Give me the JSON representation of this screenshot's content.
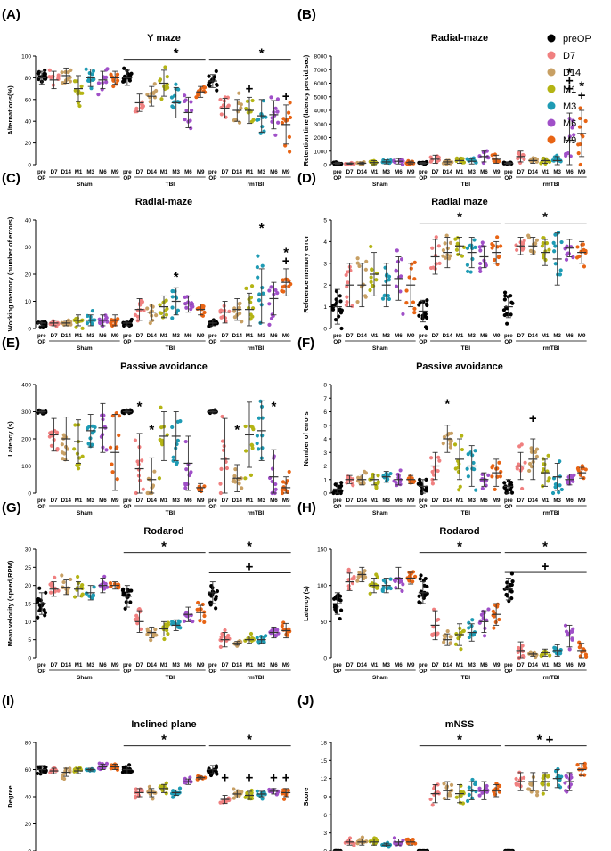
{
  "legend": {
    "entries": [
      {
        "label": "preOP",
        "color": "#000000"
      },
      {
        "label": "D7",
        "color": "#f08080"
      },
      {
        "label": "D14",
        "color": "#c8a064"
      },
      {
        "label": "M1",
        "color": "#b4b414"
      },
      {
        "label": "M3",
        "color": "#1e9bb4"
      },
      {
        "label": "M6",
        "color": "#a050c8"
      },
      {
        "label": "M9",
        "color": "#e86414"
      }
    ]
  },
  "groups": {
    "sham_label": "Sham",
    "tbi_label": "TBI",
    "rmtbi_label": "rmTBI",
    "ticks": [
      "pre OP",
      "D7",
      "D14",
      "M1",
      "M3",
      "M6",
      "M9"
    ]
  },
  "chart_data": [
    {
      "id": "A",
      "panel_label": "(A)",
      "type": "scatter",
      "title": "Y maze",
      "ylabel": "Alternations(%)",
      "ylim": [
        0,
        100
      ],
      "yticks": [
        "0",
        "20",
        "40",
        "60",
        "80",
        "100"
      ],
      "means": [
        [
          80,
          78,
          82,
          70,
          80,
          78,
          80
        ],
        [
          80,
          57,
          63,
          75,
          57,
          48,
          67
        ],
        [
          77,
          52,
          50,
          50,
          45,
          46,
          37
        ]
      ],
      "sds": [
        [
          6,
          8,
          7,
          12,
          8,
          8,
          6
        ],
        [
          7,
          8,
          9,
          12,
          14,
          14,
          5
        ],
        [
          6,
          9,
          10,
          12,
          15,
          13,
          18
        ]
      ],
      "annotations": [
        {
          "group": "TBI",
          "col": 4,
          "symbol": "*",
          "bar": true
        },
        {
          "group": "rmTBI",
          "col": 4,
          "symbol": "*",
          "bar": true
        },
        {
          "group": "rmTBI",
          "col": 3,
          "symbol": "+"
        },
        {
          "group": "rmTBI",
          "col": 6,
          "symbol": "+"
        }
      ]
    },
    {
      "id": "B",
      "panel_label": "(B)",
      "type": "scatter",
      "title": "Radial-maze",
      "ylabel": "Retention time (latency peroid,sec)",
      "ylim": [
        0,
        8000
      ],
      "yticks": [
        "0",
        "1000",
        "2000",
        "3000",
        "4000",
        "5000",
        "6000",
        "7000",
        "8000"
      ],
      "means": [
        [
          100,
          80,
          100,
          150,
          200,
          250,
          150
        ],
        [
          100,
          400,
          200,
          300,
          250,
          600,
          400
        ],
        [
          100,
          600,
          300,
          300,
          300,
          1800,
          2300
        ]
      ],
      "sds": [
        [
          80,
          50,
          80,
          150,
          150,
          200,
          100
        ],
        [
          60,
          300,
          150,
          200,
          200,
          400,
          300
        ],
        [
          60,
          400,
          200,
          200,
          300,
          2000,
          1700
        ]
      ],
      "annotations": [
        {
          "group": "rmTBI",
          "col": 5,
          "symbol": "*",
          "y": 6800
        },
        {
          "group": "rmTBI",
          "col": 5,
          "symbol": "+",
          "y": 6200
        },
        {
          "group": "rmTBI",
          "col": 5,
          "symbol": "+",
          "y": 5600
        },
        {
          "group": "rmTBI",
          "col": 6,
          "symbol": "*",
          "y": 5800
        },
        {
          "group": "rmTBI",
          "col": 6,
          "symbol": "+",
          "y": 5100
        }
      ]
    },
    {
      "id": "C",
      "panel_label": "(C)",
      "type": "scatter",
      "title": "Radial-maze",
      "ylabel": "Working memory (number of errors)",
      "ylim": [
        0,
        40
      ],
      "yticks": [
        "0",
        "10",
        "20",
        "30",
        "40"
      ],
      "means": [
        [
          2,
          2,
          2,
          3,
          3,
          3,
          3
        ],
        [
          2,
          7,
          6,
          8,
          10,
          9,
          7
        ],
        [
          2,
          6,
          7,
          7,
          12,
          11,
          17
        ]
      ],
      "sds": [
        [
          1,
          1,
          1,
          2,
          2,
          2,
          2
        ],
        [
          1,
          4,
          3,
          4,
          5,
          3,
          2
        ],
        [
          1,
          4,
          4,
          6,
          10,
          6,
          5
        ]
      ],
      "annotations": [
        {
          "group": "TBI",
          "col": 4,
          "symbol": "*",
          "y": 19
        },
        {
          "group": "rmTBI",
          "col": 4,
          "symbol": "*",
          "y": 37
        },
        {
          "group": "rmTBI",
          "col": 6,
          "symbol": "*",
          "y": 28
        },
        {
          "group": "rmTBI",
          "col": 6,
          "symbol": "+",
          "y": 25
        }
      ]
    },
    {
      "id": "D",
      "panel_label": "(D)",
      "type": "scatter",
      "title": "Radial maze",
      "ylabel": "Reference memory error",
      "ylim": [
        0,
        5
      ],
      "yticks": [
        "0",
        "1",
        "2",
        "3",
        "4",
        "5"
      ],
      "means": [
        [
          1,
          2,
          2,
          2.5,
          2,
          2.3,
          2
        ],
        [
          0.8,
          3.3,
          3.5,
          3.8,
          3.5,
          3.3,
          3.5
        ],
        [
          1,
          3.8,
          3.8,
          3.5,
          3.2,
          3.7,
          3.5
        ]
      ],
      "sds": [
        [
          0.8,
          1,
          1,
          1,
          1,
          1,
          1
        ],
        [
          0.5,
          0.8,
          0.7,
          0.4,
          0.7,
          0.5,
          0.5
        ],
        [
          0.5,
          0.4,
          0.4,
          0.6,
          1.2,
          0.4,
          0.5
        ]
      ],
      "annotations": [
        {
          "group": "TBI",
          "col": 3,
          "symbol": "*",
          "bar": true
        },
        {
          "group": "rmTBI",
          "col": 3,
          "symbol": "*",
          "bar": true
        }
      ]
    },
    {
      "id": "E",
      "panel_label": "(E)",
      "type": "scatter",
      "title": "Passive avoidance",
      "ylabel": "Latency (s)",
      "ylim": [
        0,
        400
      ],
      "yticks": [
        "0",
        "100",
        "200",
        "300",
        "400"
      ],
      "means": [
        [
          300,
          215,
          200,
          190,
          230,
          240,
          150
        ],
        [
          300,
          90,
          50,
          210,
          210,
          110,
          20
        ],
        [
          300,
          125,
          55,
          215,
          230,
          60,
          20
        ]
      ],
      "sds": [
        [
          5,
          60,
          80,
          80,
          60,
          90,
          140
        ],
        [
          5,
          130,
          80,
          90,
          90,
          100,
          15
        ],
        [
          5,
          150,
          50,
          120,
          110,
          100,
          40
        ]
      ],
      "annotations": [
        {
          "group": "TBI",
          "col": 1,
          "symbol": "*",
          "y": 320
        },
        {
          "group": "TBI",
          "col": 2,
          "symbol": "*",
          "y": 235
        },
        {
          "group": "rmTBI",
          "col": 2,
          "symbol": "*",
          "y": 235
        },
        {
          "group": "rmTBI",
          "col": 5,
          "symbol": "*",
          "y": 320
        }
      ]
    },
    {
      "id": "F",
      "panel_label": "(F)",
      "type": "scatter",
      "title": "Passive avoidance",
      "ylabel": "Number of errors",
      "ylim": [
        0,
        8
      ],
      "yticks": [
        "0",
        "1",
        "2",
        "3",
        "4",
        "5",
        "6",
        "7",
        "8"
      ],
      "means": [
        [
          0.3,
          1,
          1,
          1,
          1.2,
          1,
          1
        ],
        [
          0.5,
          2,
          4,
          2.5,
          2,
          1,
          1.5
        ],
        [
          0.5,
          2,
          2.5,
          1.5,
          1.2,
          1,
          1.5
        ]
      ],
      "sds": [
        [
          0.5,
          0.3,
          0.4,
          0.4,
          0.4,
          0.4,
          0.3
        ],
        [
          0.5,
          1,
          1,
          1.5,
          1.5,
          0.5,
          1
        ],
        [
          0.5,
          1,
          1.5,
          1,
          1,
          0.4,
          0.4
        ]
      ],
      "annotations": [
        {
          "group": "TBI",
          "col": 2,
          "symbol": "*",
          "y": 6.6
        },
        {
          "group": "rmTBI",
          "col": 2,
          "symbol": "+",
          "y": 5.5
        }
      ]
    },
    {
      "id": "G",
      "panel_label": "(G)",
      "type": "scatter",
      "title": "Rodarod",
      "ylabel": "Mean velocity (speed,RPM)",
      "ylim": [
        0,
        30
      ],
      "yticks": [
        "0",
        "5",
        "10",
        "15",
        "20",
        "25",
        "30"
      ],
      "means": [
        [
          15,
          19,
          19.5,
          19,
          18,
          20,
          20
        ],
        [
          17,
          10,
          7,
          8,
          9,
          12,
          12.5
        ],
        [
          18,
          5,
          4,
          5,
          5,
          7,
          7.5
        ]
      ],
      "sds": [
        [
          3,
          2,
          2,
          2,
          2,
          2,
          1
        ],
        [
          3,
          3,
          1.5,
          2,
          1.5,
          2,
          2
        ],
        [
          3,
          2,
          0.5,
          1,
          1,
          1.5,
          2
        ]
      ],
      "annotations": [
        {
          "group": "TBI",
          "col": 3,
          "symbol": "*",
          "bar": true
        },
        {
          "group": "rmTBI",
          "col": 3,
          "symbol": "*",
          "bar": true
        },
        {
          "group": "rmTBI",
          "col": 3,
          "symbol": "+",
          "bar": true,
          "y": 23.5
        }
      ]
    },
    {
      "id": "H",
      "panel_label": "(H)",
      "type": "scatter",
      "title": "Rodarod",
      "ylabel": "Latency (s)",
      "ylim": [
        0,
        150
      ],
      "yticks": [
        "0",
        "50",
        "100",
        "150"
      ],
      "means": [
        [
          75,
          105,
          115,
          100,
          100,
          110,
          110
        ],
        [
          90,
          45,
          25,
          32,
          35,
          50,
          60
        ],
        [
          95,
          10,
          5,
          7,
          10,
          30,
          10
        ]
      ],
      "sds": [
        [
          15,
          12,
          10,
          10,
          10,
          15,
          8
        ],
        [
          15,
          20,
          8,
          15,
          12,
          15,
          15
        ],
        [
          15,
          12,
          3,
          5,
          8,
          15,
          10
        ]
      ],
      "annotations": [
        {
          "group": "TBI",
          "col": 3,
          "symbol": "*",
          "bar": true
        },
        {
          "group": "rmTBI",
          "col": 3,
          "symbol": "*",
          "bar": true
        },
        {
          "group": "rmTBI",
          "col": 3,
          "symbol": "+",
          "bar": true,
          "y": 118
        }
      ]
    },
    {
      "id": "I",
      "panel_label": "(I)",
      "type": "scatter",
      "title": "Inclined plane",
      "ylabel": "Degree",
      "ylim": [
        0,
        80
      ],
      "yticks": [
        "0",
        "20",
        "40",
        "60",
        "80"
      ],
      "means": [
        [
          60,
          59,
          58,
          59,
          60,
          62,
          62
        ],
        [
          60,
          43,
          43,
          46,
          43,
          51,
          54
        ],
        [
          60,
          38,
          42,
          41,
          42,
          44,
          43
        ]
      ],
      "sds": [
        [
          3,
          2,
          3,
          2,
          1,
          2,
          2
        ],
        [
          3,
          3,
          3,
          3,
          2,
          2,
          1
        ],
        [
          3,
          3,
          3,
          3,
          2,
          2,
          3
        ]
      ],
      "annotations": [
        {
          "group": "TBI",
          "col": 3,
          "symbol": "*",
          "bar": true
        },
        {
          "group": "rmTBI",
          "col": 3,
          "symbol": "*",
          "bar": true
        },
        {
          "group": "rmTBI",
          "col": 1,
          "symbol": "+",
          "y": 54
        },
        {
          "group": "rmTBI",
          "col": 3,
          "symbol": "+",
          "y": 54
        },
        {
          "group": "rmTBI",
          "col": 5,
          "symbol": "+",
          "y": 54
        },
        {
          "group": "rmTBI",
          "col": 6,
          "symbol": "+",
          "y": 54
        }
      ]
    },
    {
      "id": "J",
      "panel_label": "(J)",
      "type": "scatter",
      "title": "mNSS",
      "ylabel": "Score",
      "ylim": [
        0,
        18
      ],
      "yticks": [
        "0",
        "3",
        "6",
        "9",
        "12",
        "15",
        "18"
      ],
      "means": [
        [
          0,
          1.5,
          1.5,
          1.5,
          1,
          1.5,
          1.5
        ],
        [
          0,
          9.5,
          10,
          9.5,
          10,
          10,
          10
        ],
        [
          0,
          11.5,
          11.5,
          11.5,
          12,
          11.5,
          13.5
        ]
      ],
      "sds": [
        [
          0,
          0.5,
          0.5,
          0.5,
          0.3,
          0.5,
          0.5
        ],
        [
          0,
          1.5,
          1.5,
          1.5,
          1.5,
          1.5,
          1
        ],
        [
          0,
          1.5,
          1.5,
          1.5,
          1.5,
          1.5,
          1
        ]
      ],
      "annotations": [
        {
          "group": "TBI",
          "col": 3,
          "symbol": "*",
          "bar": true
        },
        {
          "group": "rmTBI",
          "col": 3,
          "symbol": "* +",
          "bar": true
        }
      ]
    }
  ]
}
